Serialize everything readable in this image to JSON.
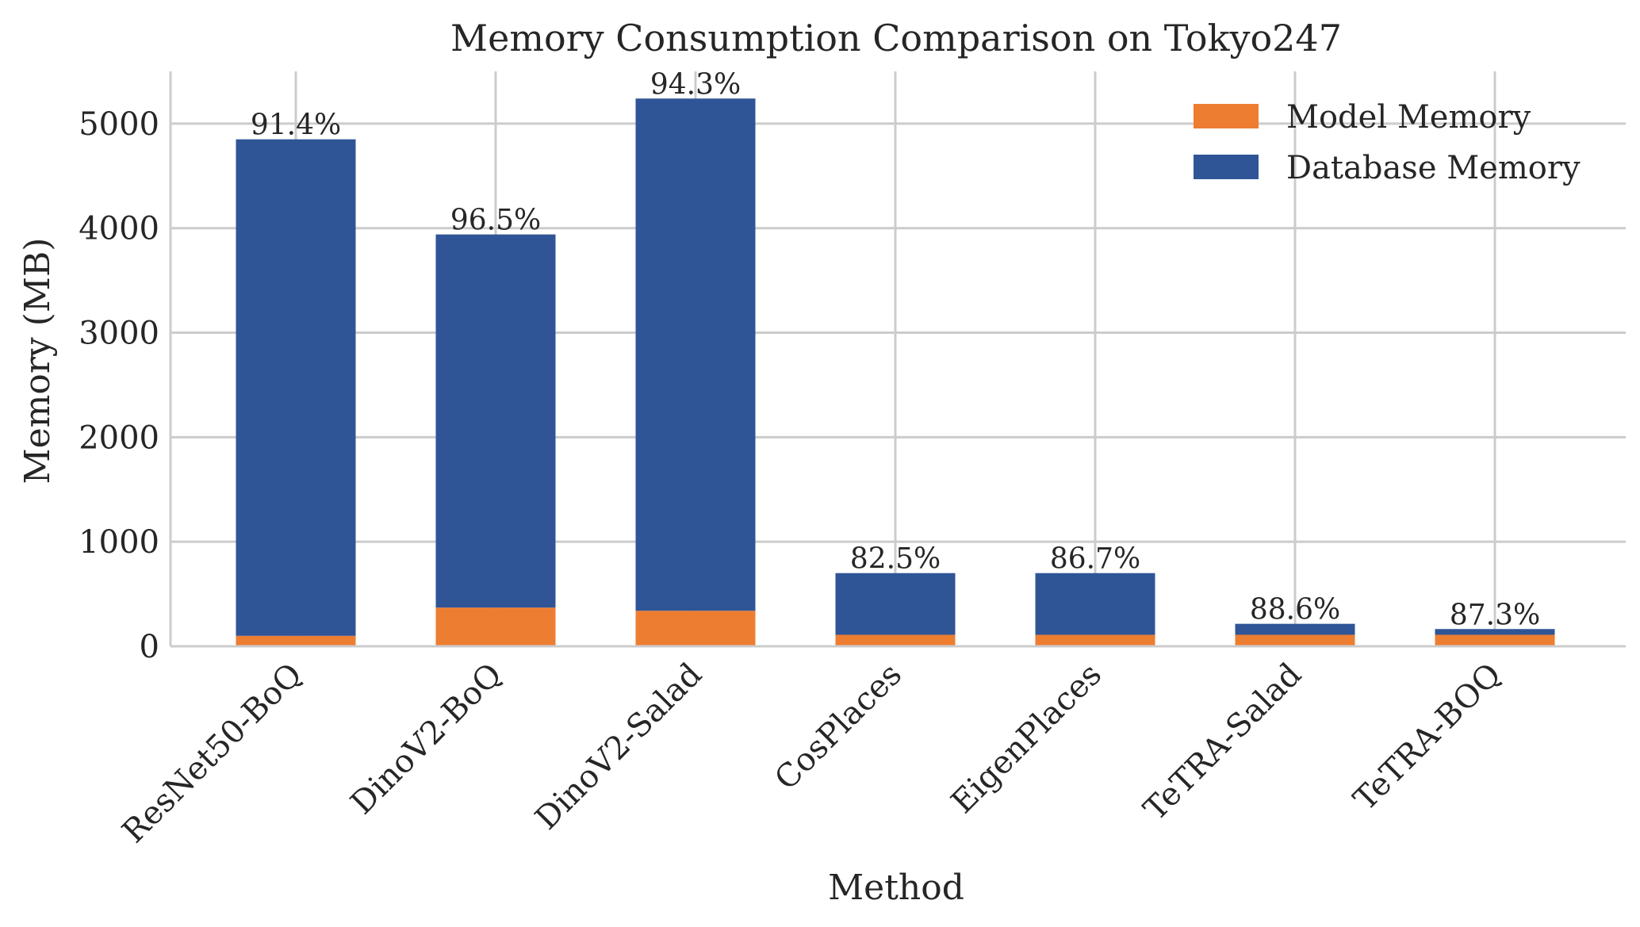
{
  "chart_data": {
    "type": "bar",
    "stacked": true,
    "title": "Memory Consumption Comparison on Tokyo247",
    "xlabel": "Method",
    "ylabel": "Memory (MB)",
    "ylim": [
      0,
      5500
    ],
    "yticks": [
      0,
      1000,
      2000,
      3000,
      4000,
      5000
    ],
    "grid": true,
    "legend_position": "top-right",
    "categories": [
      "ResNet50-BoQ",
      "DinoV2-BoQ",
      "DinoV2-Salad",
      "CosPlaces",
      "EigenPlaces",
      "TeTRA-Salad",
      "TeTRA-BOQ"
    ],
    "series": [
      {
        "name": "Model Memory",
        "color": "#ed7d31",
        "values": [
          100,
          370,
          340,
          110,
          110,
          110,
          110
        ]
      },
      {
        "name": "Database Memory",
        "color": "#2f5597",
        "values": [
          4750,
          3570,
          4900,
          590,
          590,
          105,
          55
        ]
      }
    ],
    "bar_labels": [
      "91.4%",
      "96.5%",
      "94.3%",
      "82.5%",
      "86.7%",
      "88.6%",
      "87.3%"
    ]
  }
}
